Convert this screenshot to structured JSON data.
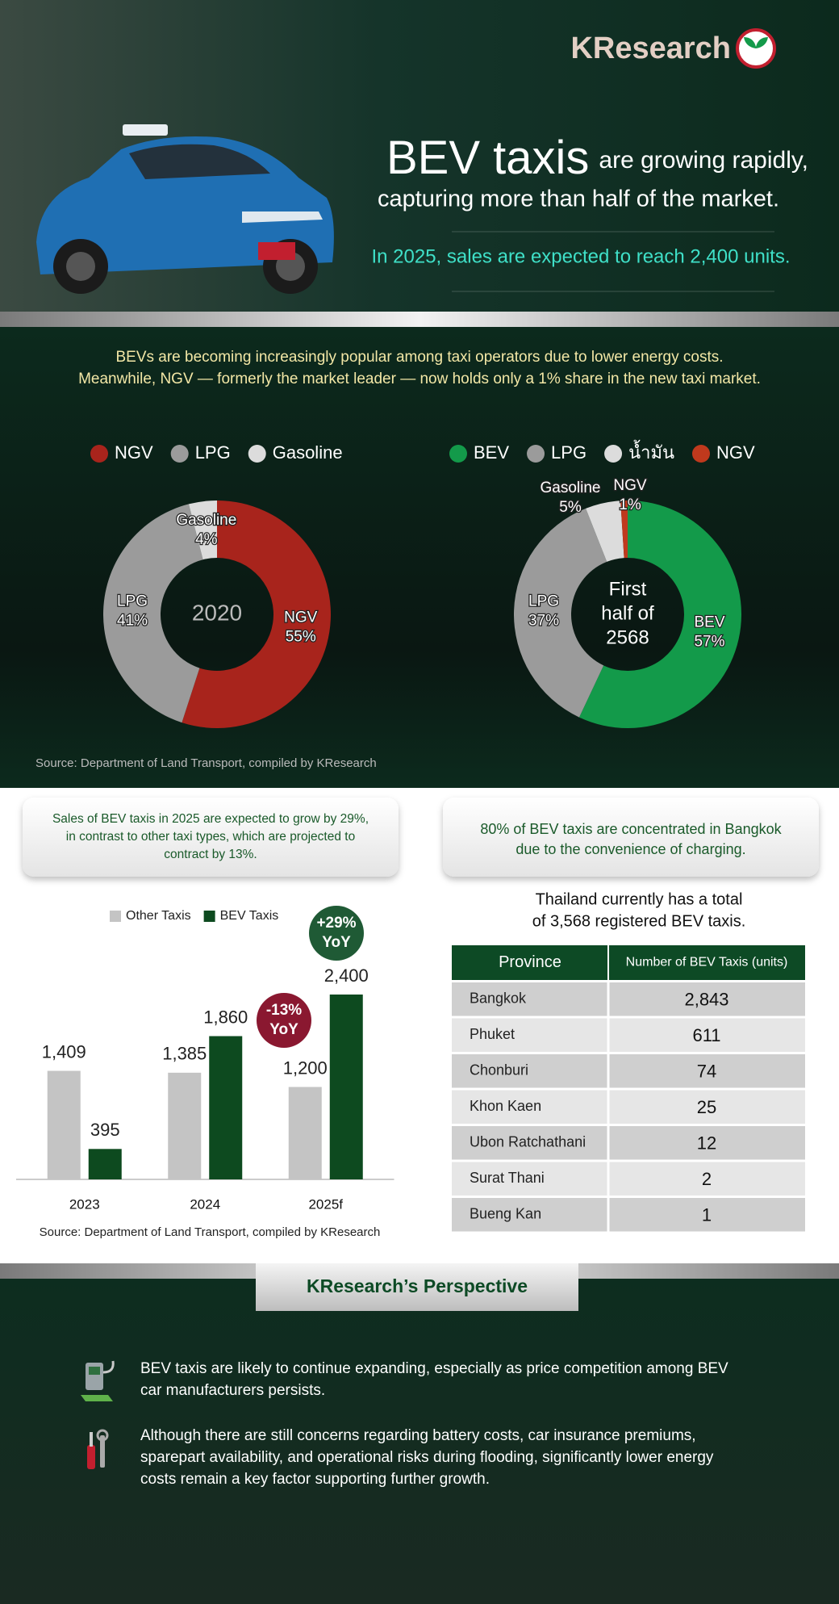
{
  "header": {
    "logo": "KResearch",
    "title_bold": "BEV taxis",
    "title_rest": "are growing rapidly,",
    "title_line2": "capturing more than half of the market.",
    "subtitle": "In 2025, sales are expected to reach 2,400 units."
  },
  "intro": [
    "BEVs are becoming increasingly popular among taxi operators due to lower energy costs.",
    "Meanwhile, NGV — formerly the market leader — now holds only a 1% share in the new taxi market."
  ],
  "chart_data": [
    {
      "type": "donut",
      "center_label": [
        "2020"
      ],
      "categories": [
        "NGV",
        "LPG",
        "Gasoline"
      ],
      "values": [
        55,
        41,
        4
      ],
      "value_labels": [
        "55%",
        "41%",
        "4%"
      ],
      "colors": [
        "#a8241c",
        "#9b9b9b",
        "#dcdcdc"
      ]
    },
    {
      "type": "donut",
      "center_label": [
        "First",
        "half of",
        "2568"
      ],
      "categories": [
        "BEV",
        "LPG",
        "Gasoline",
        "NGV"
      ],
      "legend_labels": [
        "BEV",
        "LPG",
        "น้ำมัน",
        "NGV"
      ],
      "values": [
        57,
        37,
        5,
        1
      ],
      "value_labels": [
        "57%",
        "37%",
        "5%",
        "1%"
      ],
      "colors": [
        "#139a4a",
        "#9b9b9b",
        "#dcdcdc",
        "#c0391d"
      ]
    },
    {
      "type": "bar",
      "categories": [
        "2023",
        "2024",
        "2025f"
      ],
      "ylim": [
        0,
        2400
      ],
      "series": [
        {
          "name": "Other Taxis",
          "color": "#c4c4c4",
          "values": [
            1409,
            1385,
            1200
          ],
          "value_labels": [
            "1,409",
            "1,385",
            "1,200"
          ]
        },
        {
          "name": "BEV Taxis",
          "color": "#0d4a1f",
          "values": [
            395,
            1860,
            2400
          ],
          "value_labels": [
            "395",
            "1,860",
            "2,400"
          ]
        }
      ],
      "annotations": [
        [
          "+29%",
          "YoY"
        ],
        [
          "-13%",
          "YoY"
        ]
      ]
    }
  ],
  "sources": [
    "Source: Department of Land Transport, compiled by KResearch",
    "Source: Department of Land Transport, compiled by KResearch"
  ],
  "callouts": [
    [
      "Sales of BEV taxis in 2025 are expected to grow by 29%,",
      "in contrast to other taxi types, which are projected to",
      "contract by 13%."
    ],
    [
      "80% of BEV taxis are concentrated in Bangkok",
      "due to the convenience of charging."
    ]
  ],
  "table": {
    "title": [
      "Thailand currently has a total",
      "of 3,568 registered BEV taxis."
    ],
    "header": [
      "Province",
      "Number of BEV Taxis (units)"
    ],
    "rows": [
      [
        "Bangkok",
        "2,843"
      ],
      [
        "Phuket",
        "611"
      ],
      [
        "Chonburi",
        "74"
      ],
      [
        "Khon Kaen",
        "25"
      ],
      [
        "Ubon Ratchathani",
        "12"
      ],
      [
        "Surat Thani",
        "2"
      ],
      [
        "Bueng Kan",
        "1"
      ]
    ]
  },
  "perspective": {
    "title": "KResearch’s Perspective",
    "items": [
      [
        "BEV taxis are likely to continue expanding, especially as price competition among BEV",
        "car manufacturers persists."
      ],
      [
        "Although there are still concerns regarding battery costs, car insurance premiums,",
        "sparepart availability, and operational risks during flooding, significantly lower energy",
        "costs remain a key factor supporting further growth."
      ]
    ]
  }
}
